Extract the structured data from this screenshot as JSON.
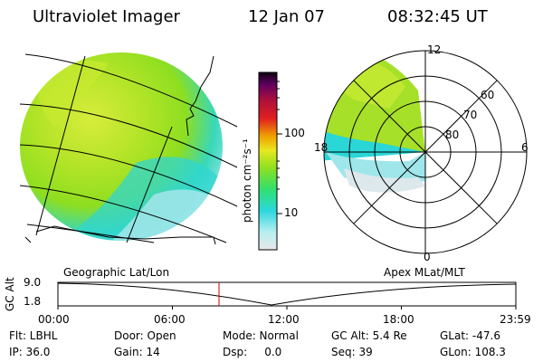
{
  "header": {
    "instrument": "Ultraviolet Imager",
    "date": "12 Jan 07",
    "time": "08:32:45 UT"
  },
  "colorbar": {
    "unit_label": "photon cm⁻²s⁻¹",
    "tick_100": "100",
    "tick_10": "10",
    "scale": "log"
  },
  "polar": {
    "lat_labels": [
      "60",
      "70",
      "80"
    ],
    "mlt_labels": [
      "12",
      "18",
      "6",
      "0"
    ]
  },
  "timeline": {
    "left_title": "Geographic Lat/Lon",
    "right_title": "Apex MLat/MLT",
    "ylabel": "GC Alt",
    "y_top": "9.0",
    "y_bottom": "1.8",
    "x_ticks": [
      "00:00",
      "06:00",
      "12:00",
      "18:00",
      "23:59"
    ],
    "marker_time": "08:32:45",
    "marker_color": "#cc0000"
  },
  "status": {
    "row1": [
      "Flt: LBHL",
      "Door: Open",
      "Mode: Normal",
      "GC Alt: 5.4 Re",
      "GLat: -47.6"
    ],
    "row2": [
      "IP: 36.0",
      "Gain: 14",
      "Dsp:     0.0",
      "Seq: 39",
      "GLon: 108.3"
    ]
  },
  "colors": {
    "green": "#9fe020",
    "yellow_green": "#c8ea30",
    "cyan": "#28d8d8",
    "light_cyan": "#9ee8ec",
    "pale": "#dde8ec",
    "outline": "#000000"
  }
}
